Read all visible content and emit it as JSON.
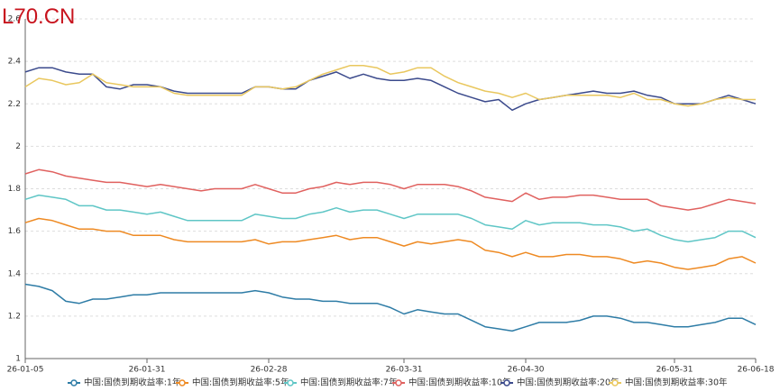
{
  "watermark": "L70.CN",
  "chart_data": {
    "type": "line",
    "categories": [
      "26-01-05",
      null,
      null,
      null,
      null,
      null,
      null,
      null,
      null,
      "26-01-31",
      null,
      null,
      null,
      null,
      null,
      null,
      null,
      null,
      "26-02-28",
      null,
      null,
      null,
      null,
      null,
      null,
      null,
      null,
      null,
      "26-03-31",
      null,
      null,
      null,
      null,
      null,
      null,
      null,
      null,
      "26-04-30",
      null,
      null,
      null,
      null,
      null,
      null,
      null,
      null,
      null,
      null,
      "26-05-31",
      null,
      null,
      null,
      null,
      null,
      "26-06-18"
    ],
    "series": [
      {
        "name": "中国:国债到期收益率:1年",
        "color": "#2e7ca6",
        "values": [
          1.35,
          1.34,
          1.32,
          1.27,
          1.26,
          1.28,
          1.28,
          1.29,
          1.3,
          1.3,
          1.31,
          1.31,
          1.31,
          1.31,
          1.31,
          1.31,
          1.31,
          1.32,
          1.31,
          1.29,
          1.28,
          1.28,
          1.27,
          1.27,
          1.26,
          1.26,
          1.26,
          1.24,
          1.21,
          1.23,
          1.22,
          1.21,
          1.21,
          1.18,
          1.15,
          1.14,
          1.13,
          1.15,
          1.17,
          1.17,
          1.17,
          1.18,
          1.2,
          1.2,
          1.19,
          1.17,
          1.17,
          1.16,
          1.15,
          1.15,
          1.16,
          1.17,
          1.19,
          1.19,
          1.16
        ]
      },
      {
        "name": "中国:国债到期收益率:5年",
        "color": "#ee8a23",
        "values": [
          1.64,
          1.66,
          1.65,
          1.63,
          1.61,
          1.61,
          1.6,
          1.6,
          1.58,
          1.58,
          1.58,
          1.56,
          1.55,
          1.55,
          1.55,
          1.55,
          1.55,
          1.56,
          1.54,
          1.55,
          1.55,
          1.56,
          1.57,
          1.58,
          1.56,
          1.57,
          1.57,
          1.55,
          1.53,
          1.55,
          1.54,
          1.55,
          1.56,
          1.55,
          1.51,
          1.5,
          1.48,
          1.5,
          1.48,
          1.48,
          1.49,
          1.49,
          1.48,
          1.48,
          1.47,
          1.45,
          1.46,
          1.45,
          1.43,
          1.42,
          1.43,
          1.44,
          1.47,
          1.48,
          1.45
        ]
      },
      {
        "name": "中国:国债到期收益率:7年",
        "color": "#5fc6c6",
        "values": [
          1.75,
          1.77,
          1.76,
          1.75,
          1.72,
          1.72,
          1.7,
          1.7,
          1.69,
          1.68,
          1.69,
          1.67,
          1.65,
          1.65,
          1.65,
          1.65,
          1.65,
          1.68,
          1.67,
          1.66,
          1.66,
          1.68,
          1.69,
          1.71,
          1.69,
          1.7,
          1.7,
          1.68,
          1.66,
          1.68,
          1.68,
          1.68,
          1.68,
          1.66,
          1.63,
          1.62,
          1.61,
          1.65,
          1.63,
          1.64,
          1.64,
          1.64,
          1.63,
          1.63,
          1.62,
          1.6,
          1.61,
          1.58,
          1.56,
          1.55,
          1.56,
          1.57,
          1.6,
          1.6,
          1.57
        ]
      },
      {
        "name": "中国:国债到期收益率:10年",
        "color": "#e0615f",
        "values": [
          1.87,
          1.89,
          1.88,
          1.86,
          1.85,
          1.84,
          1.83,
          1.83,
          1.82,
          1.81,
          1.82,
          1.81,
          1.8,
          1.79,
          1.8,
          1.8,
          1.8,
          1.82,
          1.8,
          1.78,
          1.78,
          1.8,
          1.81,
          1.83,
          1.82,
          1.83,
          1.83,
          1.82,
          1.8,
          1.82,
          1.82,
          1.82,
          1.81,
          1.79,
          1.76,
          1.75,
          1.74,
          1.78,
          1.75,
          1.76,
          1.76,
          1.77,
          1.77,
          1.76,
          1.75,
          1.75,
          1.75,
          1.72,
          1.71,
          1.7,
          1.71,
          1.73,
          1.75,
          1.74,
          1.73
        ]
      },
      {
        "name": "中国:国债到期收益率:20年",
        "color": "#3b4a8c",
        "values": [
          2.35,
          2.37,
          2.37,
          2.35,
          2.34,
          2.34,
          2.28,
          2.27,
          2.29,
          2.29,
          2.28,
          2.26,
          2.25,
          2.25,
          2.25,
          2.25,
          2.25,
          2.28,
          2.28,
          2.27,
          2.27,
          2.31,
          2.33,
          2.35,
          2.32,
          2.34,
          2.32,
          2.31,
          2.31,
          2.32,
          2.31,
          2.28,
          2.25,
          2.23,
          2.21,
          2.22,
          2.17,
          2.2,
          2.22,
          2.23,
          2.24,
          2.25,
          2.26,
          2.25,
          2.25,
          2.26,
          2.24,
          2.23,
          2.2,
          2.2,
          2.2,
          2.22,
          2.24,
          2.22,
          2.2
        ]
      },
      {
        "name": "中国:国债到期收益率:30年",
        "color": "#e9c75e",
        "values": [
          2.28,
          2.32,
          2.31,
          2.29,
          2.3,
          2.34,
          2.3,
          2.29,
          2.28,
          2.28,
          2.28,
          2.25,
          2.24,
          2.24,
          2.24,
          2.24,
          2.24,
          2.28,
          2.28,
          2.27,
          2.28,
          2.31,
          2.34,
          2.36,
          2.38,
          2.38,
          2.37,
          2.34,
          2.35,
          2.37,
          2.37,
          2.33,
          2.3,
          2.28,
          2.26,
          2.25,
          2.23,
          2.25,
          2.22,
          2.23,
          2.24,
          2.24,
          2.24,
          2.24,
          2.23,
          2.25,
          2.22,
          2.22,
          2.2,
          2.19,
          2.2,
          2.22,
          2.23,
          2.22,
          2.22
        ]
      }
    ],
    "ylim": [
      1,
      2.6
    ],
    "yticks": [
      1,
      1.2,
      1.4,
      1.6,
      1.8,
      2,
      2.2,
      2.4,
      2.6
    ],
    "grid": true,
    "legend": "bottom"
  }
}
